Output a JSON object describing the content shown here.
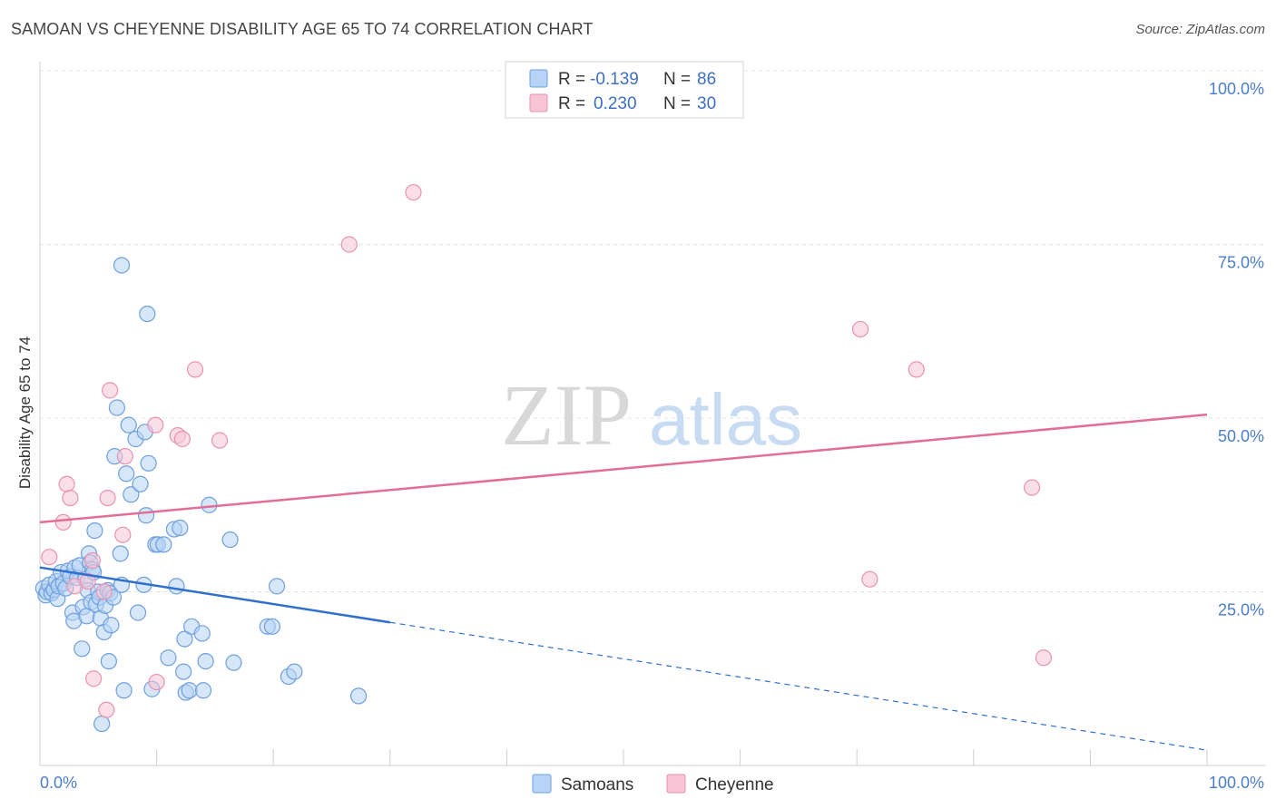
{
  "title": "SAMOAN VS CHEYENNE DISABILITY AGE 65 TO 74 CORRELATION CHART",
  "source": "Source: ZipAtlas.com",
  "watermark": {
    "zip": "ZIP",
    "atlas": "atlas"
  },
  "legend": {
    "r_label": "R =",
    "n_label": "N =",
    "series": [
      {
        "r": "-0.139",
        "n": "86"
      },
      {
        "r": "0.230",
        "n": "30"
      }
    ]
  },
  "bottom_legend": [
    "Samoans",
    "Cheyenne"
  ],
  "colors": {
    "samoans_fill": "#b7d3f5",
    "samoans_stroke": "#6f9fdc",
    "samoans_line": "#2f6fcd",
    "cheyenne_fill": "#f7c5d6",
    "cheyenne_stroke": "#e892b2",
    "cheyenne_line": "#e26d97",
    "grid": "#e3e3e3",
    "axis_text": "#4a7ec9"
  },
  "chart_data": {
    "type": "scatter",
    "title": "SAMOAN VS CHEYENNE DISABILITY AGE 65 TO 74 CORRELATION CHART",
    "xlabel": "",
    "ylabel": "Disability Age 65 to 74",
    "xlim": [
      0,
      100
    ],
    "ylim": [
      0,
      100
    ],
    "x_tick_labels": [
      "0.0%",
      "100.0%"
    ],
    "y_ticks": [
      {
        "value": 25,
        "label": "25.0%"
      },
      {
        "value": 50,
        "label": "50.0%"
      },
      {
        "value": 75,
        "label": "75.0%"
      },
      {
        "value": 100,
        "label": "100.0%"
      }
    ],
    "grid": true,
    "series": [
      {
        "name": "Samoans",
        "trend": {
          "x0": 0,
          "y0": 28.5,
          "x1": 30,
          "y1": 20.6,
          "dashed_to_x": 100,
          "dashed_to_y": 2.2
        },
        "points": [
          [
            0.3,
            25.5
          ],
          [
            0.5,
            24.5
          ],
          [
            0.6,
            25.0
          ],
          [
            0.8,
            26.0
          ],
          [
            1.0,
            24.8
          ],
          [
            1.2,
            25.3
          ],
          [
            1.4,
            26.5
          ],
          [
            1.5,
            24.0
          ],
          [
            1.6,
            25.8
          ],
          [
            1.8,
            27.8
          ],
          [
            2.0,
            26.2
          ],
          [
            2.2,
            25.5
          ],
          [
            2.4,
            28.0
          ],
          [
            2.6,
            27.2
          ],
          [
            2.8,
            22.0
          ],
          [
            2.9,
            20.8
          ],
          [
            3.0,
            28.5
          ],
          [
            3.2,
            27.0
          ],
          [
            3.4,
            28.8
          ],
          [
            3.6,
            16.8
          ],
          [
            3.7,
            22.8
          ],
          [
            3.9,
            26.8
          ],
          [
            4.0,
            21.5
          ],
          [
            4.1,
            25.2
          ],
          [
            4.2,
            30.5
          ],
          [
            4.3,
            29.2
          ],
          [
            4.4,
            23.5
          ],
          [
            4.5,
            28.2
          ],
          [
            4.6,
            27.8
          ],
          [
            4.7,
            33.8
          ],
          [
            4.8,
            23.2
          ],
          [
            5.0,
            25.0
          ],
          [
            5.1,
            24.2
          ],
          [
            5.2,
            21.2
          ],
          [
            5.3,
            6.0
          ],
          [
            5.5,
            19.2
          ],
          [
            5.6,
            23.0
          ],
          [
            5.8,
            25.2
          ],
          [
            5.9,
            15.0
          ],
          [
            6.0,
            24.8
          ],
          [
            6.1,
            20.2
          ],
          [
            6.3,
            24.2
          ],
          [
            6.4,
            44.5
          ],
          [
            6.6,
            51.5
          ],
          [
            6.9,
            30.5
          ],
          [
            7.0,
            26.0
          ],
          [
            7.2,
            10.8
          ],
          [
            7.4,
            42.0
          ],
          [
            7.6,
            49.0
          ],
          [
            7.8,
            39.0
          ],
          [
            7.0,
            72.0
          ],
          [
            8.2,
            47.0
          ],
          [
            8.4,
            22.0
          ],
          [
            8.6,
            40.5
          ],
          [
            8.9,
            26.0
          ],
          [
            9.0,
            48.0
          ],
          [
            9.2,
            65.0
          ],
          [
            9.3,
            43.5
          ],
          [
            9.1,
            36.0
          ],
          [
            9.6,
            11.0
          ],
          [
            9.9,
            31.8
          ],
          [
            10.1,
            31.8
          ],
          [
            10.6,
            31.8
          ],
          [
            11.0,
            15.5
          ],
          [
            11.5,
            34.0
          ],
          [
            11.7,
            25.8
          ],
          [
            12.0,
            34.2
          ],
          [
            12.3,
            13.5
          ],
          [
            12.4,
            18.2
          ],
          [
            12.5,
            10.5
          ],
          [
            13.0,
            20.0
          ],
          [
            12.8,
            10.8
          ],
          [
            13.9,
            19.0
          ],
          [
            14.0,
            10.8
          ],
          [
            14.2,
            15.0
          ],
          [
            14.5,
            37.5
          ],
          [
            16.3,
            32.5
          ],
          [
            16.6,
            14.8
          ],
          [
            19.5,
            20.0
          ],
          [
            19.9,
            20.0
          ],
          [
            20.3,
            25.8
          ],
          [
            21.3,
            12.8
          ],
          [
            21.8,
            13.5
          ],
          [
            27.3,
            10.0
          ]
        ]
      },
      {
        "name": "Cheyenne",
        "trend": {
          "x0": 0,
          "y0": 35.0,
          "x1": 100,
          "y1": 50.5
        },
        "points": [
          [
            0.8,
            30.0
          ],
          [
            2.0,
            35.0
          ],
          [
            2.3,
            40.5
          ],
          [
            2.6,
            38.5
          ],
          [
            3.0,
            25.8
          ],
          [
            4.1,
            26.5
          ],
          [
            4.5,
            29.5
          ],
          [
            4.6,
            12.5
          ],
          [
            5.5,
            25.0
          ],
          [
            5.7,
            8.0
          ],
          [
            5.8,
            38.5
          ],
          [
            6.0,
            54.0
          ],
          [
            7.1,
            33.2
          ],
          [
            7.3,
            44.5
          ],
          [
            9.9,
            49.0
          ],
          [
            10.0,
            12.0
          ],
          [
            11.8,
            47.5
          ],
          [
            12.2,
            47.0
          ],
          [
            13.3,
            57.0
          ],
          [
            15.4,
            46.8
          ],
          [
            26.5,
            75.0
          ],
          [
            32.0,
            82.5
          ],
          [
            70.3,
            62.8
          ],
          [
            71.1,
            26.8
          ],
          [
            75.1,
            57.0
          ],
          [
            85.0,
            40.0
          ],
          [
            86.0,
            15.5
          ]
        ]
      }
    ]
  }
}
